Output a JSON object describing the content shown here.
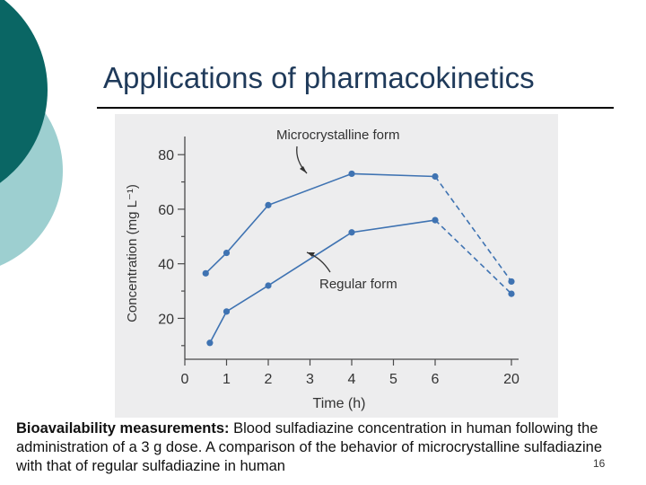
{
  "slide": {
    "title": "Applications of pharmacokinetics",
    "caption_bold": "Bioavailability measurements:",
    "caption_text": " Blood sulfadiazine concentration in human following the administration of a 3 g dose. A comparison of the behavior of microcrystalline sulfadiazine with that of regular sulfadiazine in human",
    "page_number": "16"
  },
  "colors": {
    "deco_dark": "#0a6664",
    "deco_light": "#9dcfd0",
    "series": "#3f73b2",
    "axis": "#4a4a4a"
  },
  "chart_data": {
    "type": "line",
    "xlabel": "Time (h)",
    "ylabel": "Concentration (mg L⁻¹)",
    "x_ticks": [
      "0",
      "1",
      "2",
      "3",
      "4",
      "5",
      "6",
      "20"
    ],
    "y_ticks": [
      20,
      40,
      60,
      80
    ],
    "ylim": [
      5,
      85
    ],
    "x_axis_break": "between 6 and 20 h",
    "grid": false,
    "series": [
      {
        "name": "Microcrystalline form",
        "points": [
          [
            0.5,
            36.5
          ],
          [
            1,
            44
          ],
          [
            2,
            61.5
          ],
          [
            4,
            73
          ],
          [
            6,
            72
          ]
        ],
        "dashed_to": [
          20,
          33.5
        ]
      },
      {
        "name": "Regular form",
        "points": [
          [
            0.6,
            11
          ],
          [
            1,
            22.5
          ],
          [
            2,
            32
          ],
          [
            4,
            51.5
          ],
          [
            6,
            56
          ]
        ],
        "dashed_to": [
          20,
          29
        ]
      }
    ]
  }
}
